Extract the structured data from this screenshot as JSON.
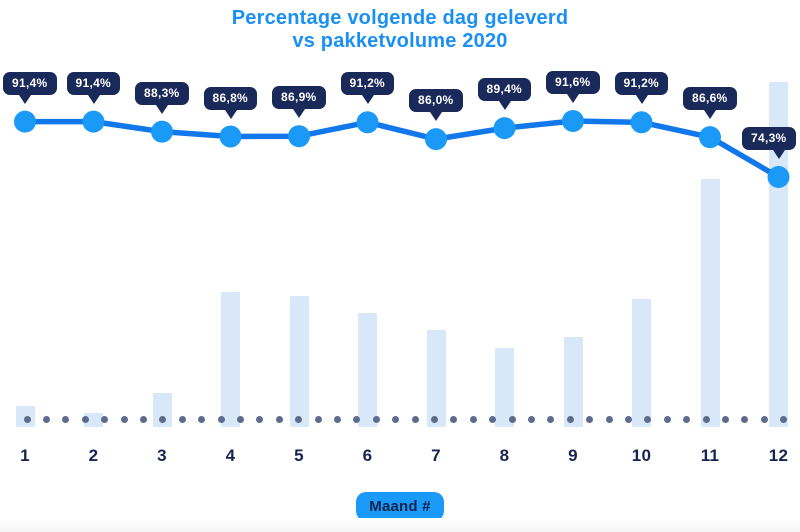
{
  "title": {
    "line1": "Percentage volgende dag geleverd",
    "line2": "vs pakketvolume 2020"
  },
  "chart_data": {
    "type": "line+bar",
    "title": "Percentage volgende dag geleverd vs pakketvolume 2020",
    "categories": [
      "1",
      "2",
      "3",
      "4",
      "5",
      "6",
      "7",
      "8",
      "9",
      "10",
      "11",
      "12"
    ],
    "xlabel": "Maand #",
    "series": [
      {
        "name": "Percentage volgende dag geleverd",
        "type": "line",
        "unit": "%",
        "values": [
          91.4,
          91.4,
          88.3,
          86.8,
          86.9,
          91.2,
          86.0,
          89.4,
          91.6,
          91.2,
          86.6,
          74.3
        ],
        "labels": [
          "91,4%",
          "91,4%",
          "88,3%",
          "86,8%",
          "86,9%",
          "91,2%",
          "86,0%",
          "89,4%",
          "91,6%",
          "91,2%",
          "86,6%",
          "74,3%"
        ]
      },
      {
        "name": "Pakketvolume 2020",
        "type": "bar",
        "unit": "relative index, estimated (no value axis shown)",
        "values": [
          6,
          4,
          10,
          39,
          38,
          33,
          28,
          23,
          26,
          37,
          72,
          100
        ]
      }
    ],
    "layout": {
      "grid": false,
      "legend": false,
      "y_axis_visible": false,
      "x_baseline_style": "dotted",
      "data_labels": "dark speech-bubble badges above line points"
    }
  },
  "colors": {
    "title_text": "#1a90f5",
    "line": "#1277ea",
    "marker": "#1b99f7",
    "badge_bg": "#19295a",
    "badge_text": "#ffffff",
    "bar_fill": "#d9e8f8",
    "baseline_dot": "#5d6c8d",
    "axis_text": "#15254f",
    "pill_bg": "#1b99f7",
    "pill_text": "#12244e",
    "background": "#ffffff"
  }
}
